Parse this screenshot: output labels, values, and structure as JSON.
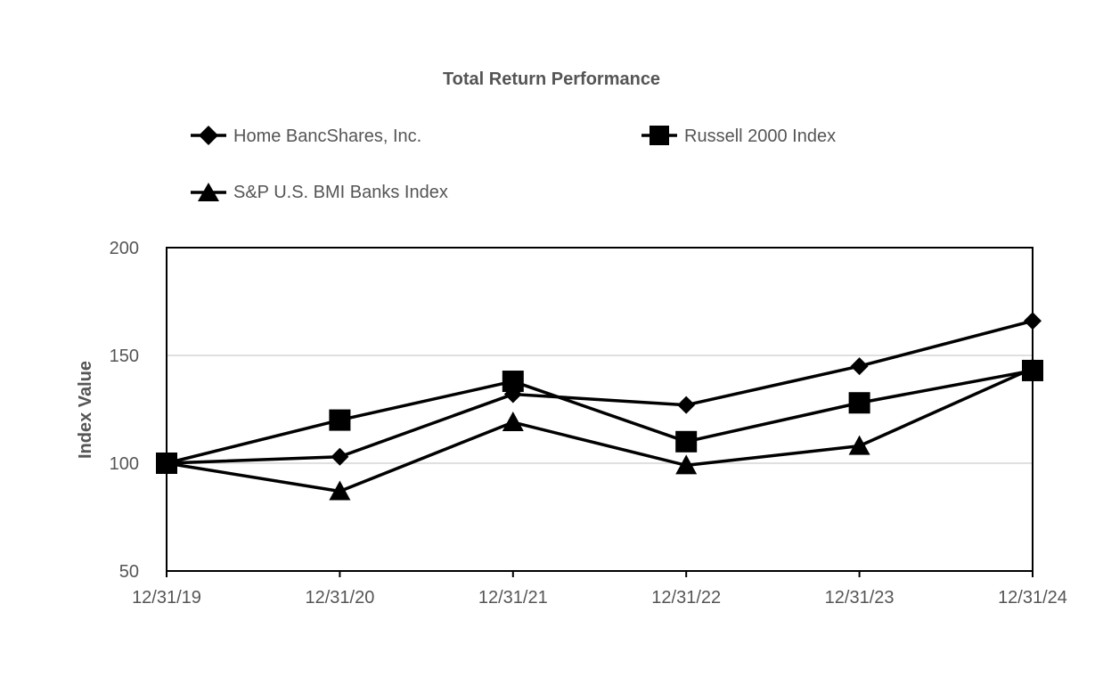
{
  "chart_data": {
    "type": "line",
    "title": "Total Return Performance",
    "xlabel": "",
    "ylabel": "Index Value",
    "categories": [
      "12/31/19",
      "12/31/20",
      "12/31/21",
      "12/31/22",
      "12/31/23",
      "12/31/24"
    ],
    "yticks": [
      "200",
      "150",
      "100",
      "50"
    ],
    "ylim": [
      50,
      200
    ],
    "grid": true,
    "legend_position": "top",
    "series": [
      {
        "name": "Home BancShares, Inc.",
        "marker": "diamond",
        "color": "#000000",
        "values": [
          100,
          103,
          132,
          127,
          145,
          166
        ]
      },
      {
        "name": "Russell 2000 Index",
        "marker": "square",
        "color": "#000000",
        "values": [
          100,
          120,
          138,
          110,
          128,
          143
        ]
      },
      {
        "name": "S&P U.S. BMI Banks Index",
        "marker": "triangle",
        "color": "#000000",
        "values": [
          100,
          87,
          119,
          99,
          108,
          144
        ]
      }
    ]
  }
}
